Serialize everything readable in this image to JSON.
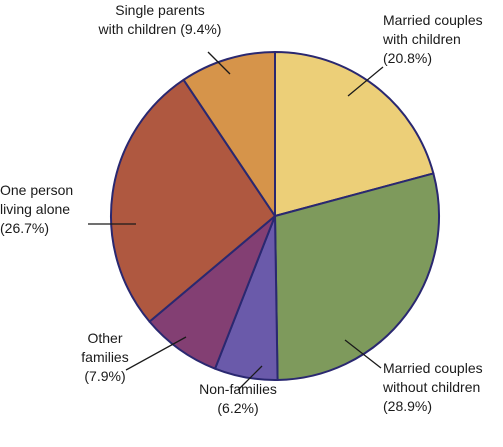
{
  "chart_data": {
    "type": "pie",
    "title": "",
    "slices": [
      {
        "label_lines": [
          "Married couples",
          "with children"
        ],
        "pct_text": "(20.8%)",
        "value": 20.8,
        "color": "#ECCF78"
      },
      {
        "label_lines": [
          "Married couples",
          "without children"
        ],
        "pct_text": "(28.9%)",
        "value": 28.9,
        "color": "#7E9A5C"
      },
      {
        "label_lines": [
          "Non-families"
        ],
        "pct_text": "(6.2%)",
        "value": 6.2,
        "color": "#6A5AAA"
      },
      {
        "label_lines": [
          "Other",
          "families"
        ],
        "pct_text": "(7.9%)",
        "value": 7.9,
        "color": "#833F73"
      },
      {
        "label_lines": [
          "One person",
          "living alone"
        ],
        "pct_text": "(26.7%)",
        "value": 26.7,
        "color": "#AF5840"
      },
      {
        "label_lines": [
          "Single parents",
          "with children (9.4%)"
        ],
        "pct_text": "",
        "value": 9.4,
        "color": "#D6944A"
      }
    ],
    "outline_color": "#2A2870",
    "leader_color": "#1a1a1a"
  }
}
